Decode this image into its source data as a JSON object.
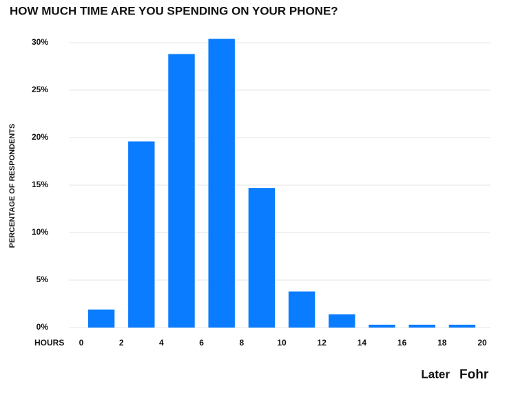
{
  "chart_data": {
    "type": "histogram",
    "title": "HOW MUCH TIME ARE YOU SPENDING ON YOUR PHONE?",
    "x_label": "HOURS",
    "y_label": "PERCENTAGE OF RESPONDENTS",
    "bins": [
      0,
      2,
      4,
      6,
      8,
      10,
      12,
      14,
      16,
      18,
      20
    ],
    "values": [
      1.9,
      19.6,
      28.8,
      30.4,
      14.7,
      3.8,
      1.4,
      0.3,
      0.3,
      0.3
    ],
    "color": "#0a7cff",
    "xlim": [
      0,
      20
    ],
    "xticks": [
      0,
      2,
      4,
      6,
      8,
      10,
      12,
      14,
      16,
      18,
      20
    ],
    "ylim": [
      0,
      30
    ],
    "yticks": [
      {
        "value": 0,
        "label": "0%"
      },
      {
        "value": 5,
        "label": "5%"
      },
      {
        "value": 10,
        "label": "10%"
      },
      {
        "value": 15,
        "label": "15%"
      },
      {
        "value": 20,
        "label": "20%"
      },
      {
        "value": 25,
        "label": "25%"
      },
      {
        "value": 30,
        "label": "30%"
      }
    ],
    "grid": true,
    "annotations": [
      "Later",
      "Fohr"
    ]
  }
}
